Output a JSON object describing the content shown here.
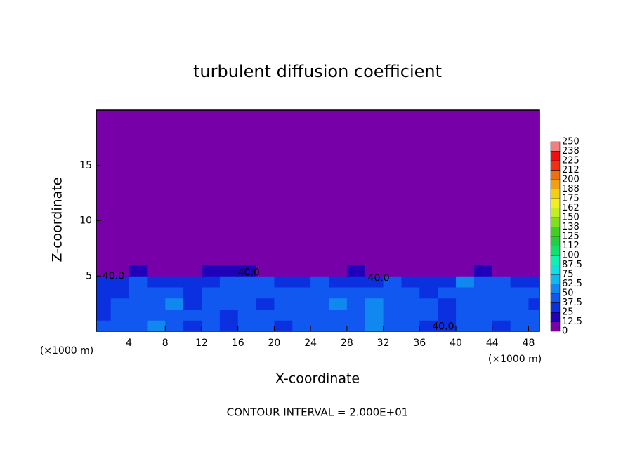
{
  "chart_data": {
    "type": "heatmap",
    "title": "turbulent diffusion coefficient",
    "x_label": "X-coordinate",
    "y_label": "Z-coordinate",
    "x_units": [
      "(×1000 m)",
      "(×1000 m)"
    ],
    "footer": "CONTOUR INTERVAL = 2.000E+01",
    "xlim": [
      0.4,
      49.2
    ],
    "ylim": [
      0,
      20
    ],
    "xticks": [
      4,
      8,
      12,
      16,
      20,
      24,
      28,
      32,
      36,
      40,
      44,
      48
    ],
    "yticks": [
      5,
      10,
      15
    ],
    "x_edges": [
      0,
      2,
      4,
      6,
      8,
      10,
      12,
      14,
      16,
      18,
      20,
      22,
      24,
      26,
      28,
      30,
      32,
      34,
      36,
      38,
      40,
      42,
      44,
      46,
      48,
      50
    ],
    "z_edges": [
      0,
      1,
      2,
      3,
      4,
      5,
      6,
      20
    ],
    "z": [
      [
        38,
        42,
        40,
        55,
        38,
        36,
        40,
        35,
        42,
        38,
        36,
        40,
        38,
        40,
        45,
        60,
        40,
        38,
        36,
        34,
        40,
        38,
        36,
        40,
        42
      ],
      [
        36,
        40,
        42,
        45,
        40,
        38,
        42,
        36,
        40,
        38,
        44,
        40,
        42,
        46,
        48,
        55,
        44,
        40,
        38,
        36,
        38,
        40,
        38,
        42,
        40
      ],
      [
        34,
        38,
        44,
        42,
        52,
        36,
        40,
        38,
        42,
        36,
        40,
        44,
        48,
        50,
        46,
        52,
        42,
        40,
        38,
        36,
        44,
        42,
        40,
        38,
        36
      ],
      [
        32,
        36,
        40,
        38,
        48,
        36,
        38,
        42,
        40,
        38,
        42,
        46,
        44,
        40,
        42,
        38,
        40,
        44,
        36,
        38,
        46,
        42,
        40,
        38,
        40
      ],
      [
        30,
        34,
        38,
        36,
        34,
        30,
        36,
        40,
        42,
        38,
        34,
        36,
        38,
        34,
        36,
        34,
        38,
        36,
        32,
        30,
        50,
        40,
        38,
        36,
        34
      ],
      [
        6,
        10,
        20,
        8,
        4,
        2,
        14,
        20,
        18,
        10,
        4,
        2,
        4,
        8,
        14,
        12,
        6,
        4,
        4,
        2,
        10,
        14,
        12,
        10,
        8
      ],
      [
        0,
        0,
        0,
        0,
        0,
        0,
        0,
        0,
        0,
        0,
        0,
        0,
        0,
        0,
        0,
        0,
        0,
        0,
        0,
        0,
        0,
        0,
        0,
        0,
        0
      ]
    ],
    "clim": [
      0,
      250
    ],
    "colorbar_ticks": [
      0,
      12.5,
      25,
      37.5,
      50,
      62.5,
      75,
      87.5,
      100,
      {
        "value": 112.5,
        "label": "112"
      },
      125,
      {
        "value": 137.5,
        "label": "138"
      },
      150,
      {
        "value": 162.5,
        "label": "162"
      },
      175,
      {
        "value": 187.5,
        "label": "188"
      },
      200,
      {
        "value": 212.5,
        "label": "212"
      },
      225,
      {
        "value": 237.5,
        "label": "238"
      },
      250
    ],
    "colorbar_colors": [
      "#7800a8",
      "#2000b8",
      "#0a30e0",
      "#1058f0",
      "#1088f0",
      "#10b8f0",
      "#10e0e0",
      "#10f0b0",
      "#10e070",
      "#20d040",
      "#40d020",
      "#80e020",
      "#c0f020",
      "#f0f020",
      "#f0d010",
      "#f0a010",
      "#f07010",
      "#f03010",
      "#f01010",
      "#f08080"
    ],
    "contour_labels": [
      {
        "text": "40.0",
        "x": 2.3,
        "z": 5.0
      },
      {
        "text": "40.0",
        "x": 17.2,
        "z": 5.3
      },
      {
        "text": "40.0",
        "x": 31.5,
        "z": 4.8
      },
      {
        "text": "40.0",
        "x": 38.6,
        "z": 0.4
      }
    ]
  }
}
